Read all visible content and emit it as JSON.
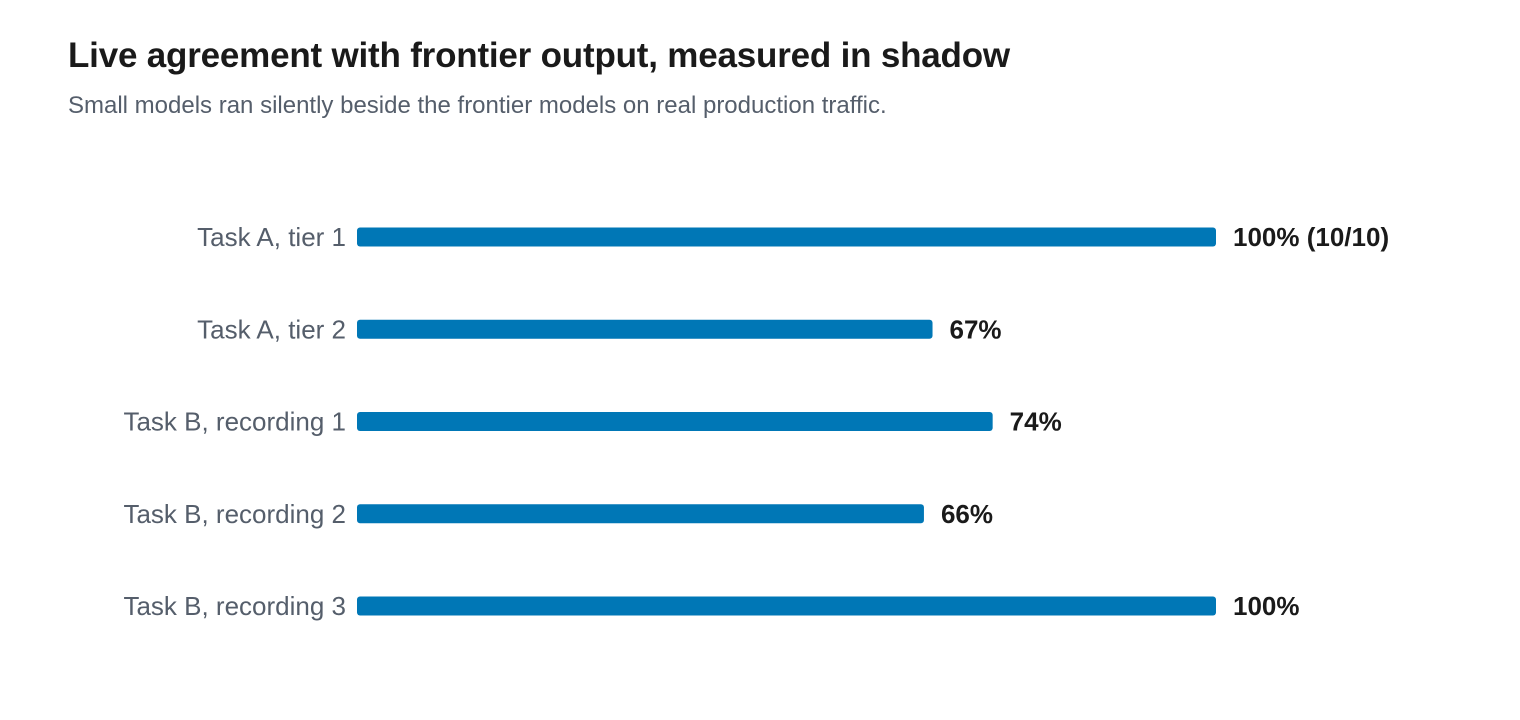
{
  "title": "Live agreement with frontier output, measured in shadow",
  "subtitle": "Small models ran silently beside the frontier models on real production traffic.",
  "colors": {
    "bar": "#0077b6"
  },
  "chart_data": {
    "type": "bar",
    "orientation": "horizontal",
    "title": "Live agreement with frontier output, measured in shadow",
    "subtitle": "Small models ran silently beside the frontier models on real production traffic.",
    "categories": [
      "Task A, tier 1",
      "Task A, tier 2",
      "Task B, recording 1",
      "Task B, recording 2",
      "Task B, recording 3"
    ],
    "values": [
      100,
      67,
      74,
      66,
      100
    ],
    "value_labels": [
      "100% (10/10)",
      "67%",
      "74%",
      "66%",
      "100%"
    ],
    "xlim": [
      0,
      100
    ],
    "unit": "%",
    "grid": false,
    "legend": "none"
  }
}
